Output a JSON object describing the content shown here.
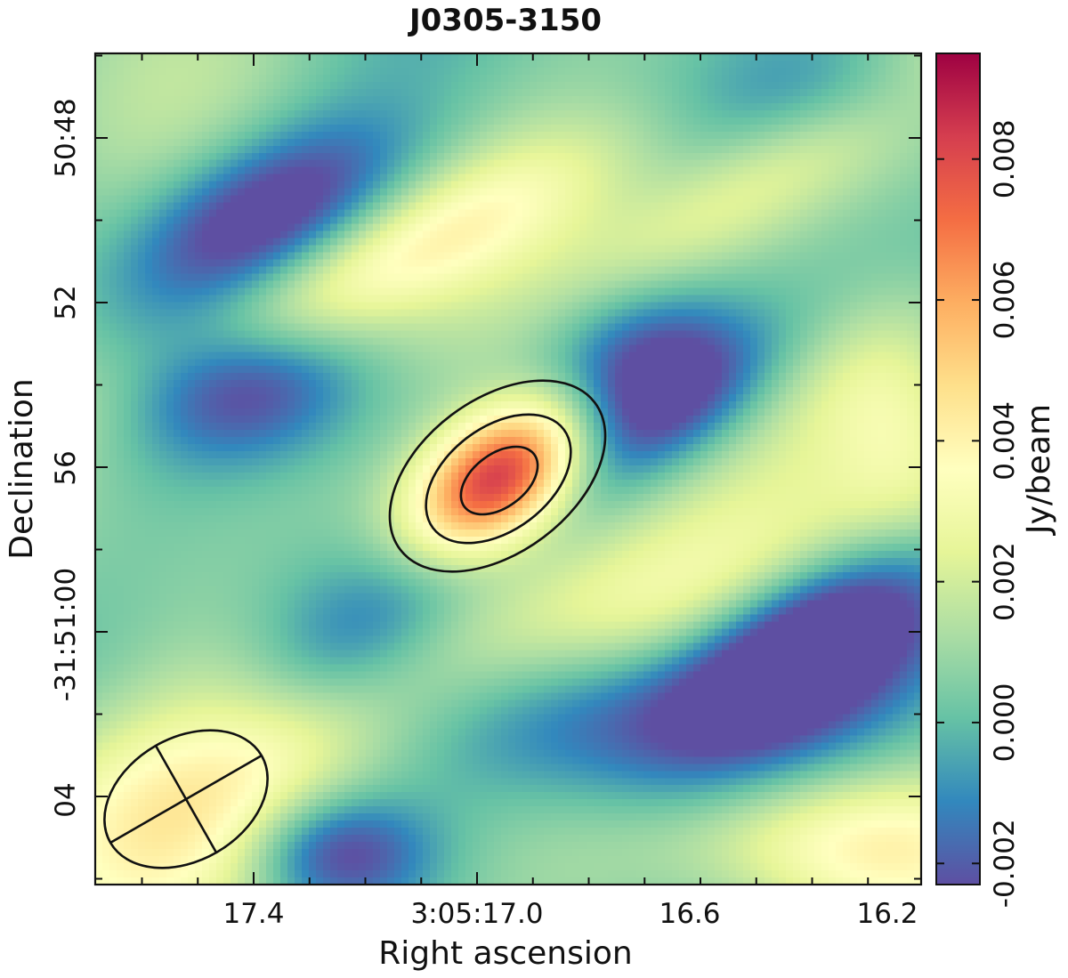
{
  "chart_data": {
    "type": "heatmap",
    "title": "J0305-3150",
    "xlabel": "Right ascension",
    "ylabel": "Declination",
    "x_tick_labels": [
      "17.4",
      "3:05:17.0",
      "16.6",
      "16.2"
    ],
    "y_tick_labels": [
      "50:48",
      "52",
      "56",
      "-31:51:00",
      "04"
    ],
    "colorbar": {
      "label": "Jy/beam",
      "range": [
        -0.0023,
        0.0095
      ],
      "tick_values": [
        -0.002,
        0.0,
        0.002,
        0.004,
        0.006,
        0.008
      ],
      "tick_labels": [
        "-0.002",
        "0.000",
        "0.002",
        "0.004",
        "0.006",
        "0.008"
      ],
      "colormap": "Spectral_r"
    },
    "contour_levels": [
      0.0037,
      0.0062,
      0.0087
    ],
    "source": {
      "peak": 0.0095,
      "ra_label": "3:05:16.9",
      "dec_label": "-31:50:55.5"
    },
    "beam": {
      "shape": "ellipse",
      "location": "bottom-left"
    }
  },
  "colors": {
    "contour": "#111111",
    "frame": "#111111"
  }
}
